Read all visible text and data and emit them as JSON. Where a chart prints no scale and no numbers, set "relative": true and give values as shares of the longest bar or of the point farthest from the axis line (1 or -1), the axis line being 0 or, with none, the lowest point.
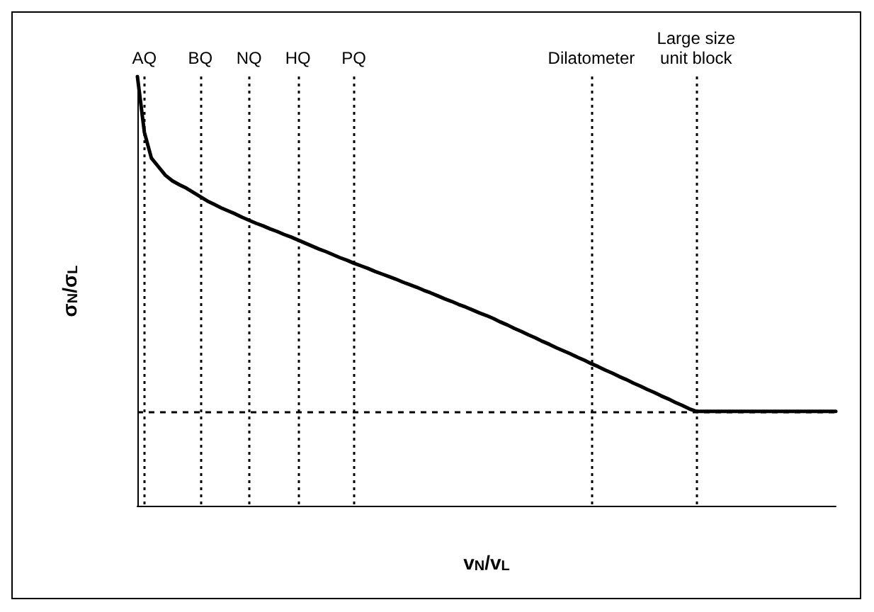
{
  "chart_data": {
    "type": "line",
    "relative": true,
    "xlabel": "v$_{N}$/v$_{L}$",
    "ylabel": "σ$_{N}$/σ$_{L}$",
    "categories": [
      null,
      "AQ",
      null,
      null,
      null,
      null,
      null,
      null,
      null,
      "BQ",
      null,
      null,
      null,
      null,
      null,
      null,
      "NQ",
      null,
      null,
      null,
      null,
      null,
      null,
      "HQ",
      null,
      null,
      null,
      null,
      null,
      null,
      null,
      "PQ",
      null,
      null,
      null,
      null,
      null,
      null,
      null,
      null,
      null,
      null,
      null,
      null,
      null,
      null,
      null,
      null,
      null,
      null,
      null,
      null,
      null,
      null,
      null,
      null,
      null,
      null,
      null,
      null,
      null,
      null,
      null,
      null,
      null,
      "Dilatometer",
      null,
      null,
      null,
      null,
      null,
      null,
      null,
      null,
      null,
      null,
      null,
      null,
      null,
      null,
      "Large size\nunit block",
      null,
      null,
      null,
      null,
      null,
      null,
      null,
      null,
      null,
      null,
      null,
      null,
      null,
      null,
      null,
      null,
      null,
      null,
      null,
      null
    ],
    "series": [
      {
        "color": "#000000",
        "values": [
          1.0,
          0.87,
          0.81,
          0.79,
          0.77,
          0.757,
          0.748,
          0.74,
          0.73,
          0.72,
          0.71,
          0.702,
          0.694,
          0.687,
          0.68,
          0.672,
          0.665,
          0.658,
          0.652,
          0.645,
          0.639,
          0.632,
          0.626,
          0.619,
          0.612,
          0.605,
          0.598,
          0.592,
          0.585,
          0.578,
          0.572,
          0.565,
          0.559,
          0.553,
          0.546,
          0.54,
          0.534,
          0.528,
          0.521,
          0.515,
          0.509,
          0.502,
          0.496,
          0.489,
          0.482,
          0.476,
          0.469,
          0.463,
          0.456,
          0.449,
          0.443,
          0.436,
          0.428,
          0.421,
          0.413,
          0.406,
          0.398,
          0.391,
          0.383,
          0.376,
          0.368,
          0.361,
          0.354,
          0.346,
          0.339,
          0.331,
          0.324,
          0.316,
          0.309,
          0.301,
          0.294,
          0.286,
          0.279,
          0.271,
          0.264,
          0.256,
          0.249,
          0.241,
          0.234,
          0.226,
          0.22,
          0.22,
          0.22,
          0.22,
          0.22,
          0.22,
          0.22,
          0.22,
          0.22,
          0.22,
          0.22,
          0.22,
          0.22,
          0.22,
          0.22,
          0.22,
          0.22,
          0.22,
          0.22,
          0.22,
          0.22
        ]
      }
    ],
    "tick_labels": "x",
    "marker": "none",
    "line_style": "solid",
    "grid": "x",
    "ref_lines": [
      {
        "axis": "y",
        "value": 0.22,
        "line_style": "dashed"
      }
    ]
  }
}
